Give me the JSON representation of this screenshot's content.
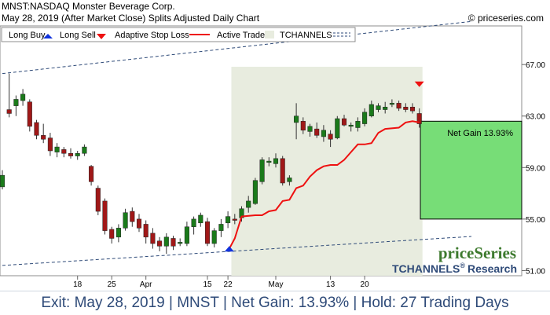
{
  "header": {
    "title": "MNST:NASDAQ Monster Beverage Corp.",
    "subtitle": "May 28, 2019 (After Market Close)  Splits Adjusted Daily Chart",
    "copyright": "© priceseries.com"
  },
  "legend": {
    "long_buy": "Long Buy",
    "long_sell": "Long Sell",
    "adaptive_stop": "Adaptive Stop Loss",
    "active_trade": "Active Trade",
    "tchannels": "TCHANNELS"
  },
  "brand": {
    "logo_text": "priceSeries",
    "tchannels_text": "TCHANNELS",
    "reg": "®",
    "research_text": "Research"
  },
  "net_gain_label": "Net Gain 13.93%",
  "footer": {
    "text": "Exit: May 28, 2019 | MNST | Net Gain: 13.93% | Hold: 27 Trading Days"
  },
  "colors": {
    "up": "#1a7a1a",
    "down": "#a01818",
    "stop_line": "#ee1111",
    "active_trade_bg": "#e8ecdf",
    "gain_box": "#77dd77",
    "channel": "#2e4a78",
    "buy_marker": "#1133dd",
    "sell_marker": "#ee1111",
    "brand_green": "#3d7a2e",
    "brand_blue": "#2e4a78"
  },
  "chart_data": {
    "type": "candlestick",
    "ylim": [
      50.6,
      70.0
    ],
    "y_ticks": [
      51.0,
      55.0,
      59.0,
      63.0,
      67.0
    ],
    "x_ticks": [
      {
        "index": 11,
        "label": "18"
      },
      {
        "index": 16,
        "label": "25"
      },
      {
        "index": 21,
        "label": "Apr"
      },
      {
        "index": 30,
        "label": "15"
      },
      {
        "index": 33,
        "label": "22"
      },
      {
        "index": 40,
        "label": "May"
      },
      {
        "index": 48,
        "label": "13"
      },
      {
        "index": 53,
        "label": "20"
      }
    ],
    "candles": [
      {
        "o": 57.5,
        "h": 58.8,
        "l": 57.3,
        "c": 58.4
      },
      {
        "o": 63.5,
        "h": 66.3,
        "l": 62.9,
        "c": 63.2
      },
      {
        "o": 63.8,
        "h": 64.6,
        "l": 63.0,
        "c": 64.3
      },
      {
        "o": 64.2,
        "h": 65.1,
        "l": 63.8,
        "c": 64.7
      },
      {
        "o": 64.1,
        "h": 64.3,
        "l": 61.8,
        "c": 62.2
      },
      {
        "o": 62.5,
        "h": 62.7,
        "l": 61.2,
        "c": 61.5
      },
      {
        "o": 61.5,
        "h": 62.4,
        "l": 60.9,
        "c": 61.2
      },
      {
        "o": 61.3,
        "h": 61.7,
        "l": 59.9,
        "c": 60.3
      },
      {
        "o": 60.2,
        "h": 60.9,
        "l": 59.8,
        "c": 60.6
      },
      {
        "o": 60.4,
        "h": 60.6,
        "l": 59.8,
        "c": 60.1
      },
      {
        "o": 60.1,
        "h": 60.5,
        "l": 59.7,
        "c": 59.9
      },
      {
        "o": 59.9,
        "h": 60.3,
        "l": 59.6,
        "c": 60.1
      },
      {
        "o": 60.1,
        "h": 60.8,
        "l": 59.9,
        "c": 60.6
      },
      {
        "o": 59.1,
        "h": 59.2,
        "l": 57.6,
        "c": 57.9
      },
      {
        "o": 57.4,
        "h": 57.6,
        "l": 55.3,
        "c": 55.6
      },
      {
        "o": 56.4,
        "h": 56.6,
        "l": 53.8,
        "c": 54.1
      },
      {
        "o": 54.2,
        "h": 54.4,
        "l": 53.1,
        "c": 53.5
      },
      {
        "o": 53.6,
        "h": 54.6,
        "l": 53.2,
        "c": 54.3
      },
      {
        "o": 54.3,
        "h": 55.8,
        "l": 54.1,
        "c": 55.5
      },
      {
        "o": 55.6,
        "h": 55.9,
        "l": 54.4,
        "c": 54.8
      },
      {
        "o": 55.0,
        "h": 55.4,
        "l": 54.0,
        "c": 54.3
      },
      {
        "o": 54.6,
        "h": 54.9,
        "l": 53.1,
        "c": 53.6
      },
      {
        "o": 53.9,
        "h": 54.3,
        "l": 52.7,
        "c": 53.1
      },
      {
        "o": 53.3,
        "h": 53.6,
        "l": 52.5,
        "c": 52.9
      },
      {
        "o": 52.9,
        "h": 53.9,
        "l": 52.3,
        "c": 53.6
      },
      {
        "o": 53.5,
        "h": 53.7,
        "l": 52.6,
        "c": 52.9
      },
      {
        "o": 53.1,
        "h": 53.5,
        "l": 52.9,
        "c": 53.2
      },
      {
        "o": 53.1,
        "h": 54.8,
        "l": 52.9,
        "c": 54.4
      },
      {
        "o": 54.4,
        "h": 55.2,
        "l": 53.8,
        "c": 55.0
      },
      {
        "o": 54.7,
        "h": 55.5,
        "l": 54.4,
        "c": 55.3
      },
      {
        "o": 54.8,
        "h": 55.1,
        "l": 52.9,
        "c": 53.1
      },
      {
        "o": 53.1,
        "h": 54.3,
        "l": 52.8,
        "c": 54.1
      },
      {
        "o": 54.1,
        "h": 55.0,
        "l": 53.6,
        "c": 54.6
      },
      {
        "o": 54.7,
        "h": 55.6,
        "l": 54.3,
        "c": 55.2
      },
      {
        "o": 55.0,
        "h": 55.4,
        "l": 54.6,
        "c": 54.9
      },
      {
        "o": 55.1,
        "h": 56.0,
        "l": 54.8,
        "c": 55.8
      },
      {
        "o": 55.9,
        "h": 56.8,
        "l": 55.5,
        "c": 56.4
      },
      {
        "o": 56.2,
        "h": 58.2,
        "l": 56.1,
        "c": 58.0
      },
      {
        "o": 57.9,
        "h": 59.8,
        "l": 57.7,
        "c": 59.6
      },
      {
        "o": 59.4,
        "h": 59.8,
        "l": 59.1,
        "c": 59.5
      },
      {
        "o": 59.3,
        "h": 60.1,
        "l": 59.0,
        "c": 59.7
      },
      {
        "o": 59.7,
        "h": 59.9,
        "l": 57.6,
        "c": 57.8
      },
      {
        "o": 57.9,
        "h": 58.4,
        "l": 57.6,
        "c": 58.2
      },
      {
        "o": 62.5,
        "h": 64.0,
        "l": 61.2,
        "c": 63.0
      },
      {
        "o": 62.6,
        "h": 62.9,
        "l": 61.6,
        "c": 61.9
      },
      {
        "o": 61.8,
        "h": 62.4,
        "l": 61.4,
        "c": 62.2
      },
      {
        "o": 62.0,
        "h": 62.5,
        "l": 61.3,
        "c": 61.5
      },
      {
        "o": 61.4,
        "h": 62.3,
        "l": 61.0,
        "c": 61.9
      },
      {
        "o": 61.6,
        "h": 61.9,
        "l": 60.6,
        "c": 61.2
      },
      {
        "o": 61.3,
        "h": 63.0,
        "l": 61.2,
        "c": 62.8
      },
      {
        "o": 62.8,
        "h": 63.1,
        "l": 62.2,
        "c": 62.3
      },
      {
        "o": 62.2,
        "h": 62.5,
        "l": 61.8,
        "c": 62.3
      },
      {
        "o": 62.1,
        "h": 62.9,
        "l": 61.8,
        "c": 62.6
      },
      {
        "o": 62.4,
        "h": 63.6,
        "l": 62.2,
        "c": 63.3
      },
      {
        "o": 63.0,
        "h": 64.2,
        "l": 62.9,
        "c": 63.9
      },
      {
        "o": 63.5,
        "h": 64.0,
        "l": 63.3,
        "c": 63.8
      },
      {
        "o": 63.5,
        "h": 64.1,
        "l": 63.2,
        "c": 63.7
      },
      {
        "o": 63.9,
        "h": 64.3,
        "l": 63.7,
        "c": 64.0
      },
      {
        "o": 64.0,
        "h": 64.2,
        "l": 63.4,
        "c": 63.6
      },
      {
        "o": 63.7,
        "h": 64.0,
        "l": 63.3,
        "c": 63.5
      },
      {
        "o": 63.7,
        "h": 64.0,
        "l": 63.2,
        "c": 63.4
      },
      {
        "o": 63.2,
        "h": 63.6,
        "l": 62.1,
        "c": 62.4
      }
    ],
    "active_trade": {
      "start_index": 33.5,
      "end_index": 61
    },
    "stop_loss": [
      [
        33.2,
        52.7
      ],
      [
        34,
        53.5
      ],
      [
        35,
        55.2
      ],
      [
        37,
        55.3
      ],
      [
        38,
        55.3
      ],
      [
        39,
        55.6
      ],
      [
        40,
        55.7
      ],
      [
        41,
        56.4
      ],
      [
        42,
        56.5
      ],
      [
        43,
        57.4
      ],
      [
        44,
        57.6
      ],
      [
        45,
        58.3
      ],
      [
        46,
        58.8
      ],
      [
        47,
        59.1
      ],
      [
        48,
        59.2
      ],
      [
        49,
        59.2
      ],
      [
        50,
        59.6
      ],
      [
        51,
        60.2
      ],
      [
        52,
        60.8
      ],
      [
        53,
        60.8
      ],
      [
        54,
        60.9
      ],
      [
        55,
        61.7
      ],
      [
        56,
        62.0
      ],
      [
        58,
        62.1
      ],
      [
        59,
        62.5
      ],
      [
        60,
        62.6
      ],
      [
        61,
        62.5
      ]
    ],
    "channel_upper": [
      [
        0,
        66.3
      ],
      [
        61,
        69.9
      ]
    ],
    "channel_lower": [
      [
        0,
        51.4
      ],
      [
        61,
        53.4
      ]
    ],
    "buy": {
      "index": 33.2,
      "price": 52.6
    },
    "sell": {
      "index": 61,
      "price": 65.5
    },
    "gain_box": {
      "entry": 55.0,
      "exit": 62.6
    }
  }
}
